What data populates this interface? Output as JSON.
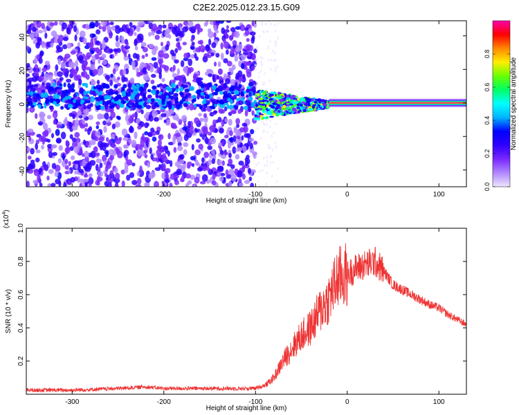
{
  "figure": {
    "title": "C2E2.2025.012.23.15.G09"
  },
  "colors": {
    "line": "#ee3333",
    "axis": "#000000",
    "colorbar_stops": [
      "#efe6ff",
      "#b088ff",
      "#7a28ff",
      "#2f00ff",
      "#0000ff",
      "#00b4ff",
      "#00ffff",
      "#00ff66",
      "#66ff00",
      "#ffee00",
      "#ff8800",
      "#ff0000",
      "#ff00aa"
    ]
  },
  "chart_data": [
    {
      "type": "heatmap",
      "title": "C2E2.2025.012.23.15.G09",
      "xlabel": "Height of straight line (km)",
      "ylabel": "Frequency (Hz)",
      "xlim": [
        -350,
        130
      ],
      "ylim": [
        -50,
        49
      ],
      "xticks": [
        -300,
        -200,
        -100,
        0,
        100
      ],
      "yticks": [
        -40,
        -20,
        0,
        20,
        40
      ],
      "colorbar": {
        "label": "Normalized spectral amplitude",
        "range": [
          0,
          1
        ],
        "ticks": [
          "0.0",
          "0.2",
          "0.4",
          "0.6",
          "0.8"
        ]
      },
      "features": [
        {
          "region": [
            -350,
            -100
          ],
          "description_values": {
            "frequency_center": 4,
            "amplitude_max": 0.4
          }
        },
        {
          "region": [
            -100,
            -20
          ],
          "description_values": {
            "frequency_center": -1,
            "amplitude_max": 0.7
          }
        },
        {
          "region": [
            -20,
            130
          ],
          "description_values": {
            "frequency_center": 0,
            "amplitude_max": 1.0
          }
        }
      ]
    },
    {
      "type": "line",
      "xlabel": "Height of straight line (km)",
      "ylabel": "SNR (10 * v/v)",
      "scale_label": "(x10",
      "scale_exp": "4",
      "scale_close": ")",
      "xlim": [
        -350,
        130
      ],
      "ylim": [
        0,
        1.0
      ],
      "xticks": [
        -300,
        -200,
        -100,
        0,
        100
      ],
      "yticks": [
        "0.2",
        "0.4",
        "0.6",
        "0.8",
        "1.0"
      ],
      "series": [
        {
          "x": [
            -350,
            -300,
            -250,
            -220,
            -200,
            -150,
            -100,
            -90,
            -80,
            -70,
            -60,
            -50,
            -40,
            -30,
            -20,
            -10,
            0,
            10,
            20,
            30,
            40,
            50,
            60,
            70,
            80,
            90,
            100,
            110,
            120,
            130
          ],
          "y": [
            0.02,
            0.02,
            0.03,
            0.04,
            0.03,
            0.03,
            0.03,
            0.05,
            0.1,
            0.2,
            0.28,
            0.35,
            0.4,
            0.5,
            0.58,
            0.7,
            0.72,
            0.76,
            0.78,
            0.8,
            0.74,
            0.66,
            0.63,
            0.6,
            0.57,
            0.54,
            0.52,
            0.48,
            0.45,
            0.42
          ]
        }
      ]
    }
  ]
}
